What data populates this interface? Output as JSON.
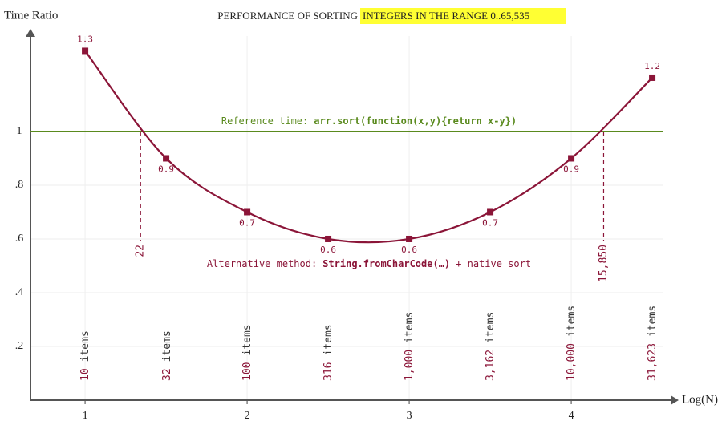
{
  "chart_data": {
    "type": "line",
    "title_plain": "PERFORMANCE OF SORTING",
    "title_highlight": "INTEGERS IN THE RANGE 0..65,535",
    "y_label": "Time Ratio",
    "x_label": "Log(N)",
    "xlim": [
      0.663,
      4.663
    ],
    "ylim": [
      0,
      1.37
    ],
    "xticks": [
      1,
      2,
      3,
      4
    ],
    "yticks": [
      {
        "value": 0.2,
        "label": ".2"
      },
      {
        "value": 0.4,
        "label": ".4"
      },
      {
        "value": 0.6,
        "label": ".6"
      },
      {
        "value": 0.8,
        "label": ".8"
      },
      1
    ],
    "grid": true,
    "series": [
      {
        "name": "Alternative method",
        "color": "#8b1538",
        "x": [
          1,
          1.5,
          2,
          2.5,
          3,
          3.5,
          4,
          4.5
        ],
        "values": [
          1.3,
          0.9,
          0.7,
          0.6,
          0.6,
          0.7,
          0.9,
          1.2
        ]
      }
    ],
    "reference": {
      "value": 1,
      "color": "#5a8a1e",
      "label_plain": "Reference time:",
      "label_code": "arr.sort(function(x,y){return x-y})"
    },
    "method_label": {
      "plain": "Alternative method:",
      "code": "String.fromCharCode(…)",
      "tail": "+ native sort"
    },
    "crossovers": [
      22,
      {
        "value": 15850,
        "label": "15,850"
      }
    ],
    "item_unit": "items",
    "item_counts": [
      10,
      32,
      100,
      316,
      {
        "value": 1000,
        "label": "1,000"
      },
      {
        "value": 3162,
        "label": "3,162"
      },
      {
        "value": 10000,
        "label": "10,000"
      },
      {
        "value": 31623,
        "label": "31,623"
      }
    ]
  }
}
